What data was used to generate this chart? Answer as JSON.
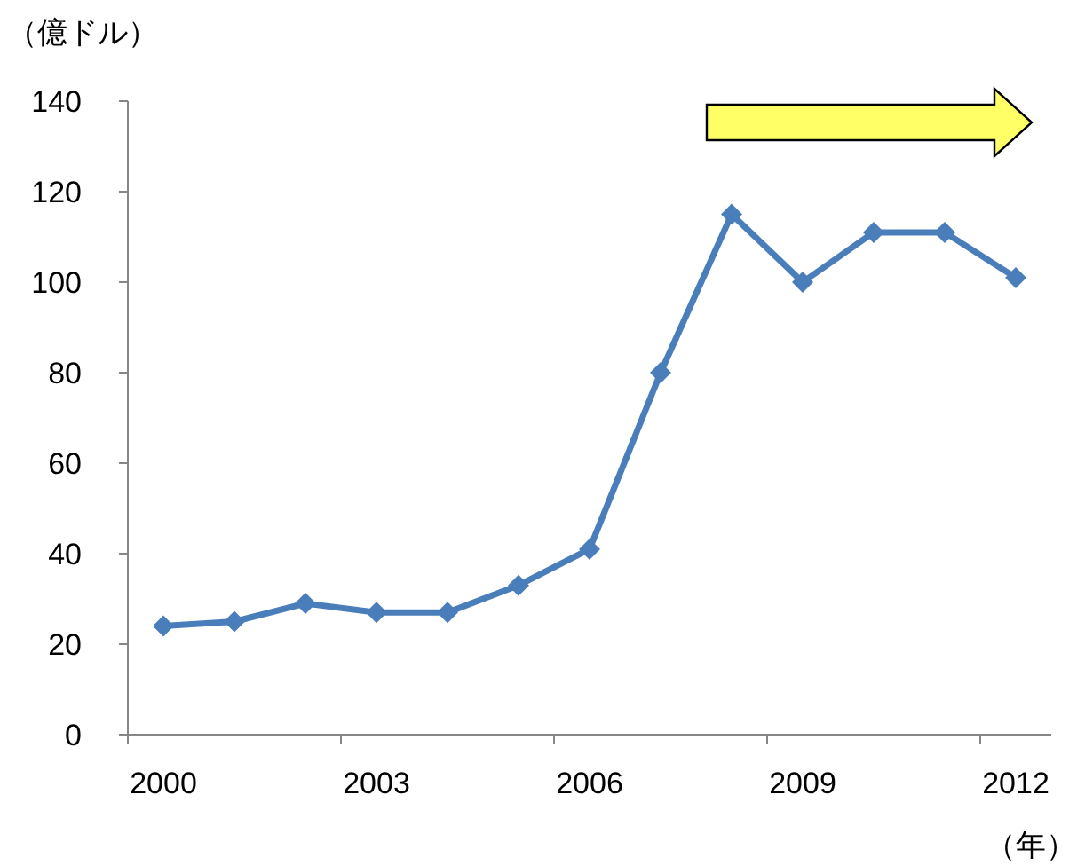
{
  "chart_data": {
    "type": "line",
    "ylabel": "（億ドル）",
    "xlabel": "（年）",
    "categories": [
      "2000",
      null,
      null,
      "2003",
      null,
      null,
      "2006",
      null,
      null,
      "2009",
      null,
      null,
      "2012"
    ],
    "series": [
      {
        "color": "#4a7ebb",
        "values": [
          24,
          25,
          29,
          27,
          27,
          33,
          41,
          80,
          115,
          100,
          111,
          111,
          101
        ]
      }
    ],
    "ylim": [
      0,
      140
    ],
    "yticks": [
      0,
      20,
      40,
      60,
      80,
      100,
      120,
      140
    ],
    "marker": "diamond",
    "line_style": "solid",
    "grid": false
  }
}
